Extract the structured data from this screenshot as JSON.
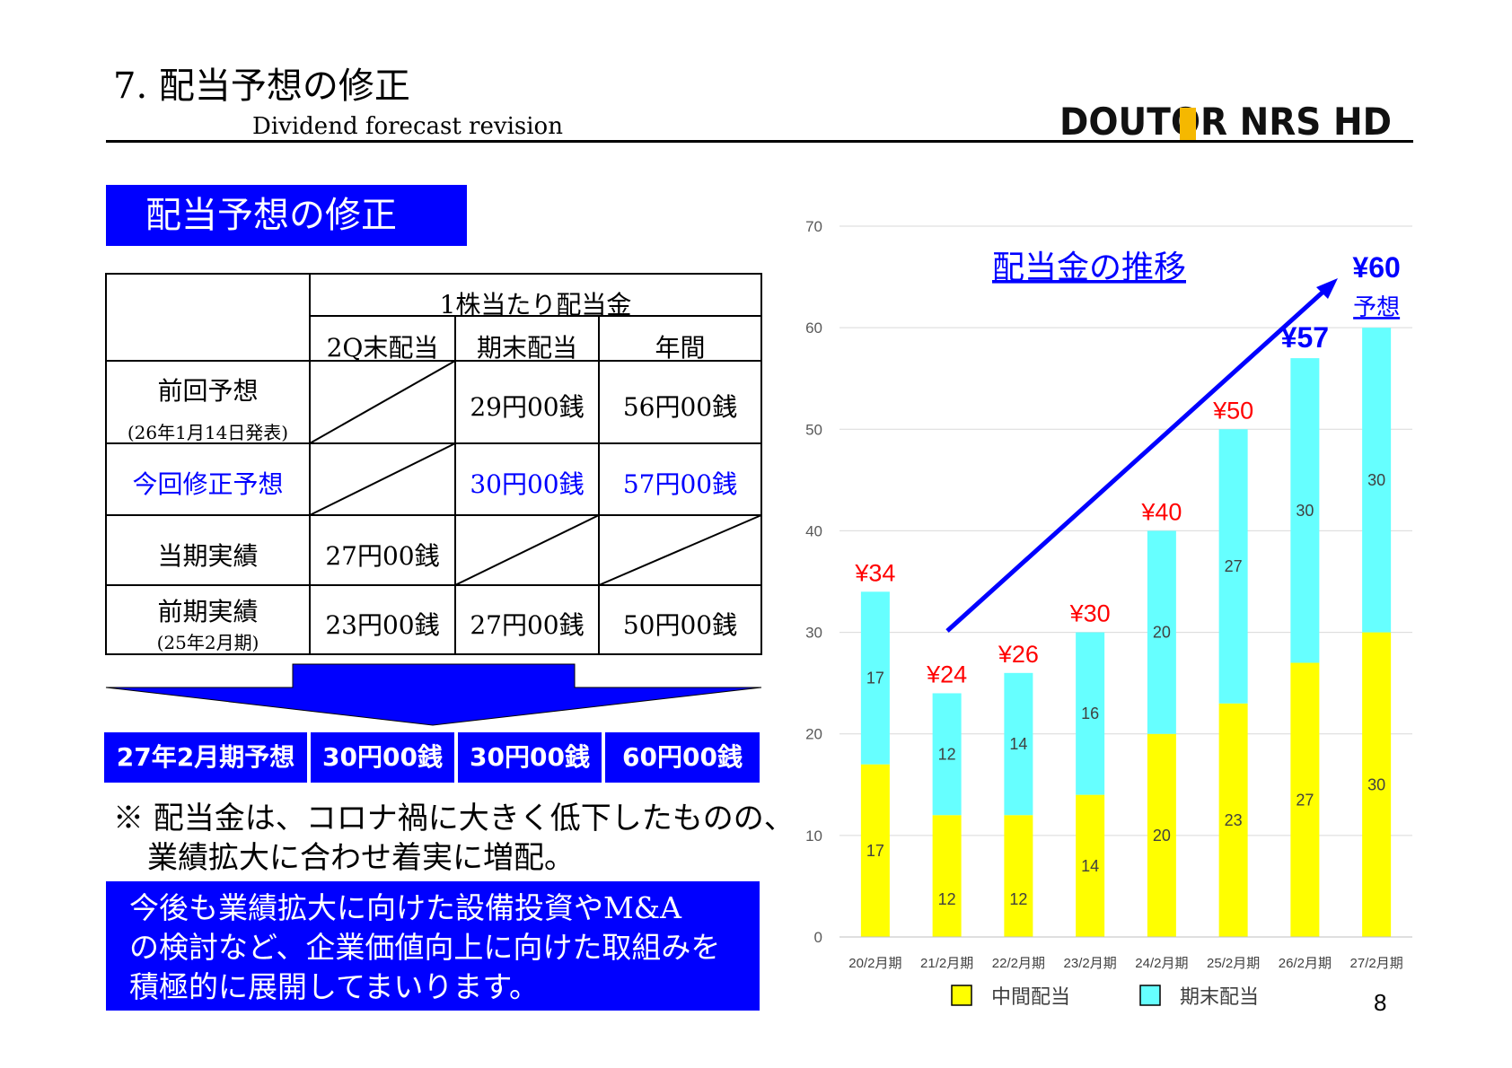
{
  "header": {
    "title": "7. 配当予想の修正",
    "subtitle": "Dividend forecast revision",
    "logo_text": "DOUTOR NRS HD"
  },
  "section_heading": "配当予想の修正",
  "table": {
    "group_header": "1株当たり配当金",
    "columns": [
      "2Q末配当",
      "期末配当",
      "年間"
    ],
    "rows": [
      {
        "label": "前回予想",
        "sublabel": "(26年1月14日発表)",
        "q2": "",
        "year_end": "29円00銭",
        "annual": "56円00銭"
      },
      {
        "label": "今回修正予想",
        "sublabel": "",
        "q2": "",
        "year_end": "30円00銭",
        "annual": "57円00銭"
      },
      {
        "label": "当期実績",
        "sublabel": "",
        "q2": "27円00銭",
        "year_end": "",
        "annual": ""
      },
      {
        "label": "前期実績",
        "sublabel": "(25年2月期)",
        "q2": "23円00銭",
        "year_end": "27円00銭",
        "annual": "50円00銭"
      }
    ]
  },
  "forecast_row": {
    "label": "27年2月期予想",
    "q2": "30円00銭",
    "year_end": "30円00銭",
    "annual": "60円00銭"
  },
  "note": {
    "line1": "※ 配当金は、コロナ禍に大きく低下したものの、",
    "line2": "業績拡大に合わせ着実に増配。"
  },
  "box": {
    "line1": "今後も業績拡大に向けた設備投資やM&A",
    "line2": "の検討など、企業価値向上に向けた取組みを",
    "line3": "積極的に展開してまいります。"
  },
  "page_number": "8",
  "chart_data": {
    "type": "bar",
    "stacked": true,
    "title": "配当金の推移",
    "categories": [
      "20/2月期",
      "21/2月期",
      "22/2月期",
      "23/2月期",
      "24/2月期",
      "25/2月期",
      "26/2月期",
      "27/2月期"
    ],
    "series": [
      {
        "name": "中間配当",
        "color": "#ffff00",
        "values": [
          17,
          12,
          12,
          14,
          20,
          23,
          27,
          30
        ]
      },
      {
        "name": "期末配当",
        "color": "#66ffff",
        "values": [
          17,
          12,
          14,
          16,
          20,
          27,
          30,
          30
        ]
      }
    ],
    "totals": [
      "¥34",
      "¥24",
      "¥26",
      "¥30",
      "¥40",
      "¥50",
      "¥57",
      "¥60"
    ],
    "forecast_label": "予想",
    "ylim": [
      0,
      70
    ],
    "yticks": [
      0,
      10,
      20,
      30,
      40,
      50,
      60,
      70
    ],
    "grid": true,
    "legend": "bottom",
    "colors": {
      "total_label": "#ff0000",
      "highlight_total": "#0000ff",
      "arrow": "#0000ff"
    }
  }
}
